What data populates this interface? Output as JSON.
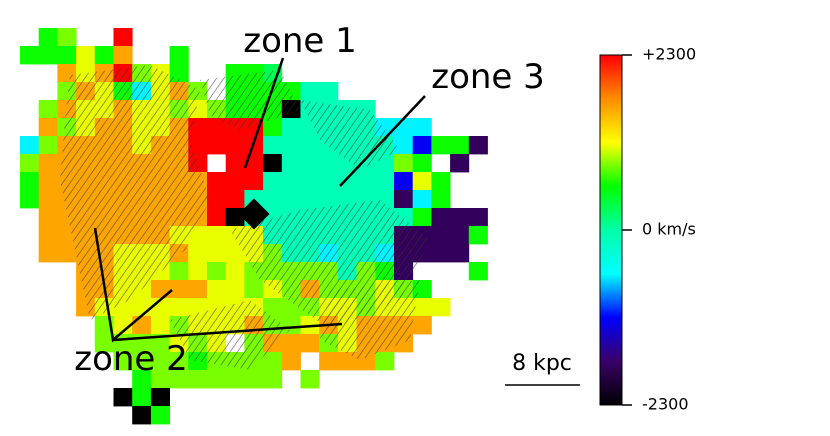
{
  "chart_data": {
    "type": "heatmap",
    "annotations": [
      "zone 1",
      "zone 2",
      "zone 3"
    ],
    "scale_bar": "8 kpc",
    "zlim": [
      -2300,
      2300
    ],
    "zticks": [
      {
        "value": 2300,
        "label": "+2300"
      },
      {
        "value": 0,
        "label": "0 km/s"
      },
      {
        "value": -2300,
        "label": "-2300"
      }
    ],
    "colormap": [
      "#000000",
      "#3a0068",
      "#0000ff",
      "#00ffff",
      "#00ffa8",
      "#00ff00",
      "#ffff00",
      "#ff8c00",
      "#ff0000"
    ],
    "grid": [
      [
        null,
        600,
        850,
        null,
        null,
        2300
      ],
      [
        600,
        600,
        600,
        1100,
        600,
        1600,
        null,
        null,
        600
      ],
      [
        null,
        null,
        1600,
        1100,
        1600,
        2300,
        850,
        1100,
        600,
        null,
        null,
        600,
        600,
        300
      ],
      [
        null,
        null,
        850,
        1600,
        1100,
        600,
        -600,
        1100,
        1600,
        850,
        null,
        600,
        600,
        600,
        600,
        -100,
        -100
      ],
      [
        null,
        850,
        1600,
        1100,
        1100,
        1600,
        1100,
        1100,
        850,
        1100,
        850,
        600,
        600,
        600,
        -2300,
        -100,
        -100,
        -100,
        -100
      ],
      [
        null,
        1600,
        850,
        1100,
        1600,
        1600,
        1100,
        1100,
        1600,
        2300,
        2300,
        2300,
        2300,
        600,
        -100,
        -100,
        -100,
        -100,
        -100,
        -600,
        -600,
        -600
      ],
      [
        -600,
        850,
        1600,
        1600,
        1600,
        1600,
        1100,
        1600,
        1600,
        2300,
        2300,
        2300,
        2300,
        -100,
        -100,
        -100,
        -100,
        -100,
        -100,
        -100,
        -600,
        -1200,
        600,
        600,
        -1800
      ],
      [
        850,
        1600,
        1600,
        1600,
        1600,
        1600,
        1600,
        1600,
        1600,
        2300,
        null,
        2300,
        2300,
        -2300,
        -100,
        -100,
        -100,
        -100,
        -100,
        -100,
        850,
        600,
        null,
        -1800
      ],
      [
        600,
        1600,
        1600,
        1600,
        1600,
        1600,
        1600,
        1600,
        1600,
        1600,
        2300,
        2300,
        2300,
        -100,
        -100,
        -100,
        -100,
        -100,
        -100,
        -100,
        -1200,
        1100,
        600
      ],
      [
        600,
        1600,
        1600,
        1600,
        1600,
        1600,
        1600,
        1600,
        1600,
        1600,
        2300,
        2300,
        -100,
        -100,
        -100,
        -100,
        -100,
        -100,
        -100,
        -100,
        -1800,
        -600,
        600
      ],
      [
        null,
        1600,
        1600,
        1600,
        1600,
        1600,
        1600,
        1600,
        1600,
        1600,
        2300,
        -2300,
        -100,
        -100,
        -100,
        -100,
        -100,
        -100,
        -100,
        -100,
        -100,
        600,
        -1800,
        -1800,
        -1800
      ],
      [
        null,
        1600,
        1600,
        1600,
        1600,
        1600,
        1600,
        1600,
        1100,
        1100,
        1100,
        1100,
        1100,
        -100,
        -100,
        -100,
        -100,
        -100,
        -100,
        -100,
        -1800,
        -1800,
        -1800,
        -1800,
        600
      ],
      [
        null,
        1600,
        1600,
        1600,
        1600,
        1100,
        1100,
        1100,
        1600,
        1100,
        1100,
        1100,
        1100,
        850,
        -100,
        -100,
        -600,
        -100,
        -100,
        -600,
        -1800,
        -1800,
        -1800,
        -1800
      ],
      [
        null,
        null,
        null,
        1600,
        1600,
        1100,
        1100,
        1100,
        850,
        1100,
        850,
        1100,
        850,
        850,
        850,
        850,
        850,
        -100,
        850,
        600,
        -1800,
        null,
        null,
        null,
        600
      ],
      [
        null,
        null,
        null,
        1600,
        1600,
        1100,
        1100,
        1600,
        1600,
        1600,
        1100,
        1100,
        850,
        1100,
        850,
        1600,
        850,
        850,
        850,
        1100,
        850,
        600
      ],
      [
        null,
        null,
        null,
        1600,
        1100,
        1100,
        1100,
        1100,
        1100,
        1100,
        1100,
        1100,
        1100,
        850,
        850,
        850,
        1100,
        1100,
        850,
        1100,
        1100,
        1100,
        1100
      ],
      [
        null,
        null,
        null,
        null,
        850,
        1100,
        1600,
        1100,
        850,
        1100,
        1100,
        1100,
        1600,
        850,
        850,
        1100,
        1600,
        1100,
        1600,
        1600,
        1600,
        1600
      ],
      [
        null,
        null,
        null,
        null,
        850,
        850,
        850,
        850,
        1100,
        850,
        1100,
        null,
        850,
        1600,
        1600,
        1600,
        850,
        1100,
        1600,
        1600,
        1600
      ],
      [
        null,
        null,
        null,
        null,
        null,
        850,
        850,
        850,
        850,
        600,
        850,
        850,
        850,
        850,
        1600,
        null,
        1600,
        1600,
        1600,
        850
      ],
      [
        null,
        null,
        null,
        null,
        null,
        null,
        600,
        850,
        850,
        850,
        850,
        850,
        850,
        850,
        null,
        850
      ],
      [
        null,
        null,
        null,
        null,
        null,
        -2300,
        600,
        -2300
      ],
      [
        null,
        null,
        null,
        null,
        null,
        null,
        -2300,
        600
      ]
    ]
  }
}
